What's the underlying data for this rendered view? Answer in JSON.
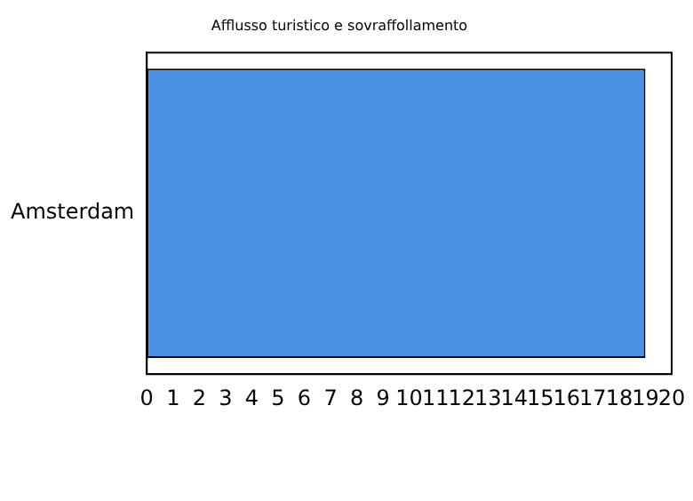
{
  "chart_data": {
    "type": "bar",
    "orientation": "horizontal",
    "title": "Afflusso turistico e sovraffollamento",
    "categories": [
      "Amsterdam"
    ],
    "values": [
      19
    ],
    "color": "#4a90e2",
    "xlim": [
      0,
      20
    ],
    "xticks": [
      0,
      1,
      2,
      3,
      4,
      5,
      6,
      7,
      8,
      9,
      10,
      11,
      12,
      13,
      14,
      15,
      16,
      17,
      18,
      19,
      20
    ],
    "grid": false,
    "legend": false
  }
}
